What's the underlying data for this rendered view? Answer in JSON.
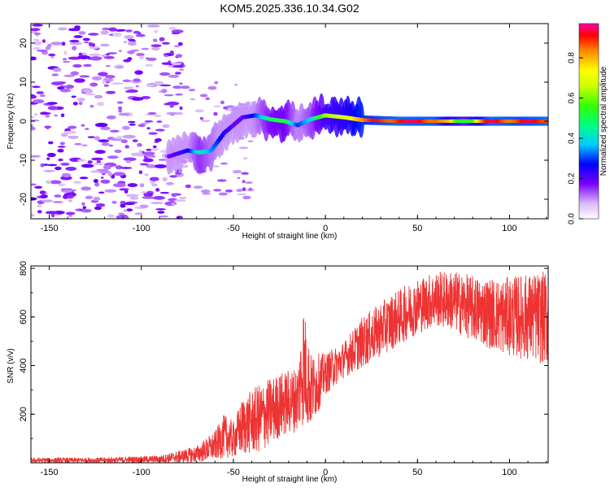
{
  "title": "KOM5.2025.336.10.34.G02",
  "colors": {
    "snr_line": "#ee3333",
    "axis": "#000000"
  },
  "chart_data": [
    {
      "type": "heatmap",
      "name": "spectrogram",
      "xlabel": "Height of straight line (km)",
      "ylabel": "Frequency (Hz)",
      "xlim": [
        -160,
        121
      ],
      "ylim": [
        -25,
        25
      ],
      "xticks": [
        -150,
        -100,
        -50,
        0,
        50,
        100
      ],
      "yticks": [
        -20,
        -10,
        0,
        10,
        20
      ],
      "colorbar": {
        "label": "Normalized spectral amplitude",
        "range": [
          0,
          0.97
        ],
        "ticks": [
          0.0,
          0.2,
          0.4,
          0.6,
          0.8
        ]
      },
      "ridge": [
        {
          "x": -85,
          "y": -9,
          "a": 0.18
        },
        {
          "x": -75,
          "y": -7.5,
          "a": 0.25
        },
        {
          "x": -68,
          "y": -8,
          "a": 0.45
        },
        {
          "x": -62,
          "y": -7.5,
          "a": 0.35
        },
        {
          "x": -55,
          "y": -3,
          "a": 0.25
        },
        {
          "x": -50,
          "y": -1,
          "a": 0.2
        },
        {
          "x": -45,
          "y": 1,
          "a": 0.2
        },
        {
          "x": -38,
          "y": 1.5,
          "a": 0.3
        },
        {
          "x": -30,
          "y": 0.5,
          "a": 0.5
        },
        {
          "x": -22,
          "y": 0,
          "a": 0.55
        },
        {
          "x": -15,
          "y": -1,
          "a": 0.3
        },
        {
          "x": -8,
          "y": 0.5,
          "a": 0.4
        },
        {
          "x": 0,
          "y": 1.5,
          "a": 0.65
        },
        {
          "x": 10,
          "y": 1,
          "a": 0.7
        },
        {
          "x": 20,
          "y": 0.3,
          "a": 0.85
        },
        {
          "x": 40,
          "y": 0,
          "a": 0.95
        },
        {
          "x": 60,
          "y": 0,
          "a": 0.92
        },
        {
          "x": 75,
          "y": 0,
          "a": 0.6
        },
        {
          "x": 90,
          "y": 0,
          "a": 0.95
        },
        {
          "x": 105,
          "y": 0,
          "a": 0.9
        },
        {
          "x": 121,
          "y": 0,
          "a": 0.95
        }
      ]
    },
    {
      "type": "line",
      "name": "snr",
      "xlabel": "Height of straight line (km)",
      "ylabel": "SNR (v/v)",
      "xlim": [
        -160,
        121
      ],
      "ylim": [
        0,
        810
      ],
      "xticks": [
        -150,
        -100,
        -50,
        0,
        50,
        100
      ],
      "yticks": [
        200,
        400,
        600,
        800
      ],
      "envelope": [
        {
          "x": -160,
          "lo": 0,
          "hi": 20
        },
        {
          "x": -120,
          "lo": 0,
          "hi": 22
        },
        {
          "x": -90,
          "lo": 0,
          "hi": 30
        },
        {
          "x": -70,
          "lo": 0,
          "hi": 70
        },
        {
          "x": -60,
          "lo": 10,
          "hi": 130
        },
        {
          "x": -55,
          "lo": 20,
          "hi": 200
        },
        {
          "x": -50,
          "lo": 20,
          "hi": 170
        },
        {
          "x": -45,
          "lo": 30,
          "hi": 270
        },
        {
          "x": -35,
          "lo": 40,
          "hi": 330
        },
        {
          "x": -25,
          "lo": 100,
          "hi": 370
        },
        {
          "x": -15,
          "lo": 130,
          "hi": 400
        },
        {
          "x": -12,
          "lo": 150,
          "hi": 670
        },
        {
          "x": -8,
          "lo": 140,
          "hi": 450
        },
        {
          "x": 0,
          "lo": 280,
          "hi": 450
        },
        {
          "x": 10,
          "lo": 350,
          "hi": 500
        },
        {
          "x": 20,
          "lo": 390,
          "hi": 600
        },
        {
          "x": 35,
          "lo": 460,
          "hi": 690
        },
        {
          "x": 50,
          "lo": 530,
          "hi": 760
        },
        {
          "x": 60,
          "lo": 560,
          "hi": 790
        },
        {
          "x": 70,
          "lo": 540,
          "hi": 790
        },
        {
          "x": 80,
          "lo": 500,
          "hi": 770
        },
        {
          "x": 95,
          "lo": 450,
          "hi": 760
        },
        {
          "x": 110,
          "lo": 420,
          "hi": 780
        },
        {
          "x": 121,
          "lo": 400,
          "hi": 790
        }
      ]
    }
  ]
}
